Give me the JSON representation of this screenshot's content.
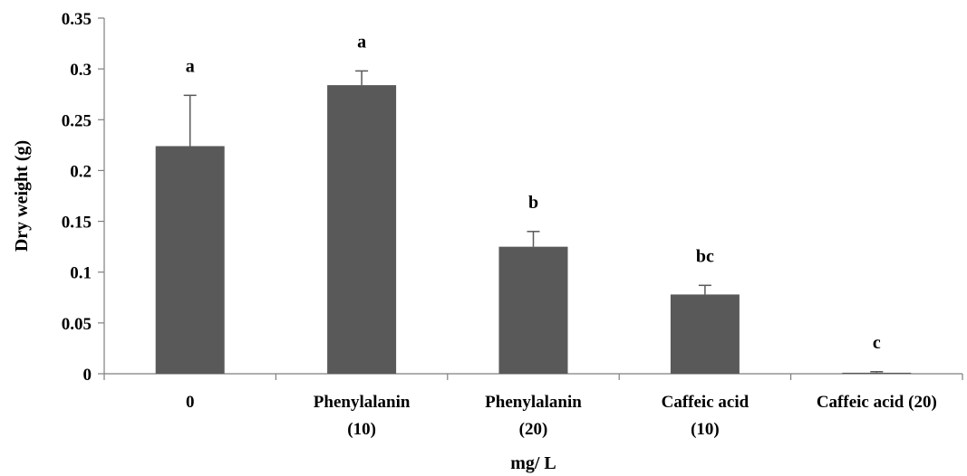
{
  "chart_data": {
    "type": "bar",
    "categories": [
      [
        "0"
      ],
      [
        "Phenylalanin",
        "(10)"
      ],
      [
        "Phenylalanin",
        "(20)"
      ],
      [
        "Caffeic acid",
        "(10)"
      ],
      [
        "Caffeic acid (20)"
      ]
    ],
    "values": [
      0.224,
      0.284,
      0.125,
      0.078,
      0.001
    ],
    "errors": [
      0.05,
      0.014,
      0.015,
      0.009,
      0.001
    ],
    "significance": [
      "a",
      "a",
      "b",
      "bc",
      "c"
    ],
    "xlabel": "mg/ L",
    "ylabel": "Dry weight (g)",
    "ylim": [
      0,
      0.35
    ],
    "yticks": [
      "0",
      "0.05",
      "0.1",
      "0.15",
      "0.2",
      "0.25",
      "0.3",
      "0.35"
    ],
    "ytick_values": [
      0,
      0.05,
      0.1,
      0.15,
      0.2,
      0.25,
      0.3,
      0.35
    ],
    "bar_color": "#595959",
    "grid": false,
    "legend": "none"
  }
}
